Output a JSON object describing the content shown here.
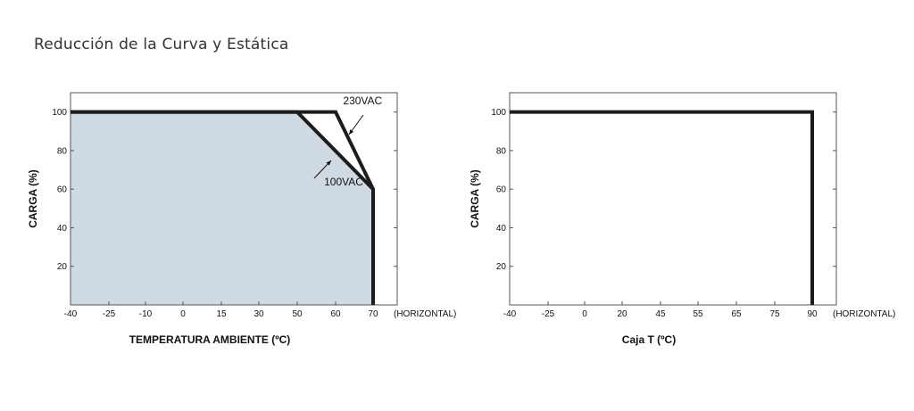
{
  "page": {
    "title": "Reducción de la Curva y Estática"
  },
  "colors": {
    "fill": "#d0dae3",
    "line": "#1c1c1c",
    "axis": "#555555"
  },
  "chart_data": [
    {
      "type": "area",
      "title": "",
      "xlabel": "TEMPERATURA AMBIENTE (ºC)",
      "ylabel": "CARGA (%)",
      "x_ticks": [
        -40,
        -25,
        -10,
        0,
        15,
        30,
        50,
        60,
        70
      ],
      "x_tick_labels": [
        "-40",
        "-25",
        "-10",
        "0",
        "15",
        "30",
        "50",
        "60",
        "70"
      ],
      "x_unit_label": "(HORIZONTAL)",
      "y_ticks": [
        20,
        40,
        60,
        80,
        100
      ],
      "y_tick_labels": [
        "20",
        "40",
        "60",
        "80",
        "100"
      ],
      "ylim": [
        0,
        110
      ],
      "series": [
        {
          "name": "230VAC",
          "x": [
            -40,
            60,
            70,
            70
          ],
          "y": [
            100,
            100,
            60,
            0
          ]
        },
        {
          "name": "100VAC",
          "x": [
            -40,
            50,
            70,
            70
          ],
          "y": [
            100,
            100,
            60,
            0
          ],
          "filled": true
        }
      ],
      "annotations": [
        {
          "text": "230VAC",
          "x": 62,
          "y": 104,
          "arrow_to": [
            64,
            90
          ]
        },
        {
          "text": "100VAC",
          "x": 57,
          "y": 62,
          "arrow_to": [
            62,
            79
          ]
        }
      ]
    },
    {
      "type": "line",
      "title": "",
      "xlabel": "Caja T (ºC)",
      "ylabel": "CARGA (%)",
      "x_ticks": [
        -40,
        -25,
        0,
        20,
        45,
        55,
        65,
        75,
        90
      ],
      "x_tick_labels": [
        "-40",
        "-25",
        "0",
        "20",
        "45",
        "55",
        "65",
        "75",
        "90"
      ],
      "x_unit_label": "(HORIZONTAL)",
      "y_ticks": [
        20,
        40,
        60,
        80,
        100
      ],
      "y_tick_labels": [
        "20",
        "40",
        "60",
        "80",
        "100"
      ],
      "ylim": [
        0,
        110
      ],
      "series": [
        {
          "x": [
            -40,
            90,
            90
          ],
          "y": [
            100,
            100,
            0
          ]
        }
      ]
    }
  ]
}
